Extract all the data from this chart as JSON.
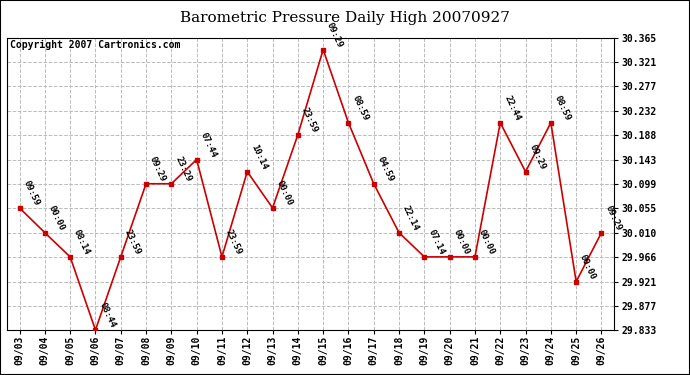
{
  "title": "Barometric Pressure Daily High 20070927",
  "copyright": "Copyright 2007 Cartronics.com",
  "dates": [
    "09/03",
    "09/04",
    "09/05",
    "09/06",
    "09/07",
    "09/08",
    "09/09",
    "09/10",
    "09/11",
    "09/12",
    "09/13",
    "09/14",
    "09/15",
    "09/16",
    "09/17",
    "09/18",
    "09/19",
    "09/20",
    "09/21",
    "09/22",
    "09/23",
    "09/24",
    "09/25",
    "09/26"
  ],
  "values": [
    30.055,
    30.01,
    29.966,
    29.833,
    29.966,
    30.099,
    30.099,
    30.143,
    29.966,
    30.121,
    30.055,
    30.188,
    30.343,
    30.21,
    30.099,
    30.01,
    29.966,
    29.966,
    29.966,
    30.21,
    30.121,
    30.21,
    29.921,
    30.01
  ],
  "times": [
    "09:59",
    "00:00",
    "08:14",
    "08:44",
    "23:59",
    "09:29",
    "23:29",
    "07:44",
    "23:59",
    "10:14",
    "00:00",
    "23:59",
    "09:29",
    "08:59",
    "04:59",
    "22:14",
    "07:14",
    "00:00",
    "00:00",
    "22:44",
    "09:29",
    "08:59",
    "00:00",
    "09:29"
  ],
  "yticks": [
    29.833,
    29.877,
    29.921,
    29.966,
    30.01,
    30.055,
    30.099,
    30.143,
    30.188,
    30.232,
    30.277,
    30.321,
    30.365
  ],
  "ylim_min": 29.833,
  "ylim_max": 30.365,
  "line_color": "#cc0000",
  "marker_color": "#cc0000",
  "bg_color": "#ffffff",
  "grid_color": "#bbbbbb",
  "title_fontsize": 11,
  "copyright_fontsize": 7,
  "tick_fontsize": 7,
  "annotation_fontsize": 6.5
}
